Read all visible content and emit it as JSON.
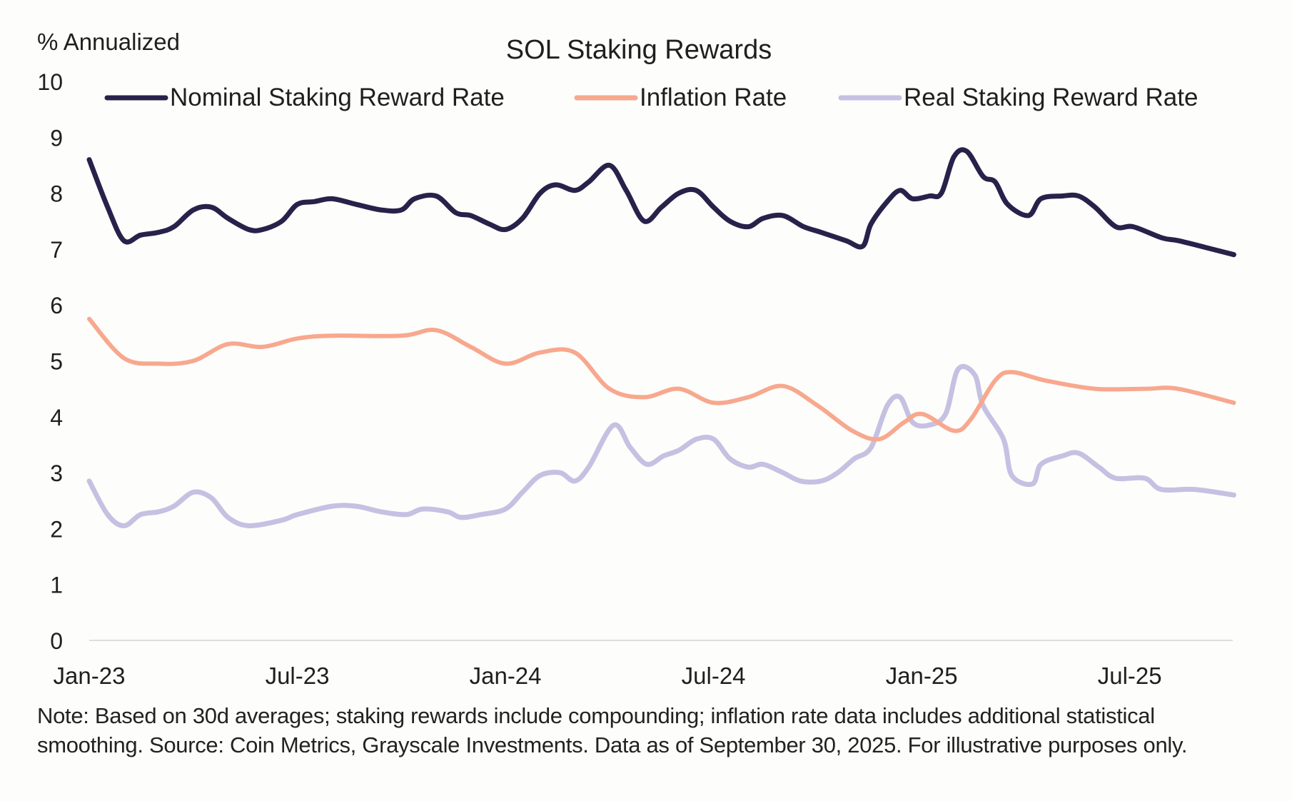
{
  "chart_data": {
    "type": "line",
    "title": "SOL Staking Rewards",
    "ylabel": "% Annualized",
    "xlabel": "",
    "ylim": [
      0,
      10
    ],
    "yticks": [
      "0",
      "1",
      "2",
      "3",
      "4",
      "5",
      "6",
      "7",
      "8",
      "9",
      "10"
    ],
    "x_unit": "months since Jan-23",
    "xlim": [
      0,
      32.97
    ],
    "xticks": [
      {
        "label": "Jan-23",
        "x": 0
      },
      {
        "label": "Jul-23",
        "x": 6
      },
      {
        "label": "Jan-24",
        "x": 12
      },
      {
        "label": "Jul-24",
        "x": 18
      },
      {
        "label": "Jan-25",
        "x": 24
      },
      {
        "label": "Jul-25",
        "x": 30
      }
    ],
    "grid": "baseline only",
    "legend": "top",
    "series": [
      {
        "name": "Nominal Staking Reward Rate",
        "color": "#27224a",
        "x": [
          0,
          0.53,
          1.0,
          1.48,
          2.0,
          2.44,
          3.0,
          3.52,
          4.0,
          4.6,
          5.0,
          5.55,
          6.0,
          6.5,
          7.0,
          7.7,
          8.42,
          9.0,
          9.38,
          10.0,
          10.57,
          11.0,
          11.53,
          12.0,
          12.49,
          13.0,
          13.45,
          14.0,
          14.4,
          15.0,
          15.48,
          16.0,
          16.5,
          17.0,
          17.5,
          18.0,
          18.47,
          19.0,
          19.43,
          20.0,
          20.6,
          21.1,
          21.82,
          22.3,
          22.54,
          23.01,
          23.38,
          23.74,
          24.23,
          24.57,
          24.93,
          25.3,
          25.77,
          26.12,
          26.48,
          27.08,
          27.44,
          28.06,
          28.52,
          29.0,
          29.6,
          30.1,
          30.93,
          31.41,
          32.37,
          33.0
        ],
        "values": [
          8.6,
          7.75,
          7.15,
          7.25,
          7.3,
          7.4,
          7.7,
          7.75,
          7.55,
          7.35,
          7.35,
          7.5,
          7.8,
          7.85,
          7.9,
          7.8,
          7.7,
          7.7,
          7.9,
          7.95,
          7.65,
          7.6,
          7.45,
          7.35,
          7.55,
          8.0,
          8.15,
          8.05,
          8.2,
          8.5,
          8.05,
          7.5,
          7.75,
          8.0,
          8.05,
          7.75,
          7.5,
          7.4,
          7.55,
          7.6,
          7.4,
          7.3,
          7.15,
          7.05,
          7.45,
          7.85,
          8.05,
          7.9,
          7.95,
          8.0,
          8.65,
          8.75,
          8.3,
          8.2,
          7.8,
          7.6,
          7.9,
          7.95,
          7.95,
          7.75,
          7.4,
          7.4,
          7.2,
          7.15,
          7.0,
          6.9
        ]
      },
      {
        "name": "Inflation Rate",
        "color": "#f7a88e",
        "x": [
          0,
          1.0,
          2.0,
          3.0,
          4.0,
          5.0,
          6.0,
          7.0,
          9.0,
          10.0,
          11.0,
          12.0,
          13.0,
          14.0,
          15.0,
          16.0,
          17.0,
          18.0,
          19.0,
          20.0,
          21.0,
          22.0,
          22.78,
          23.49,
          24.02,
          24.93,
          25.41,
          26.12,
          26.6,
          27.56,
          29.0,
          30.43,
          31.39,
          33.0
        ],
        "values": [
          5.75,
          5.05,
          4.95,
          5.0,
          5.3,
          5.25,
          5.4,
          5.45,
          5.45,
          5.55,
          5.25,
          4.95,
          5.15,
          5.15,
          4.5,
          4.35,
          4.5,
          4.25,
          4.35,
          4.55,
          4.2,
          3.75,
          3.6,
          3.9,
          4.05,
          3.75,
          3.95,
          4.65,
          4.8,
          4.65,
          4.5,
          4.5,
          4.5,
          4.25
        ]
      },
      {
        "name": "Real Staking Reward Rate",
        "color": "#c5c1e2",
        "x": [
          0,
          0.53,
          1.0,
          1.48,
          2.0,
          2.44,
          3.0,
          3.52,
          4.0,
          4.6,
          5.55,
          6.0,
          7.0,
          7.7,
          8.42,
          9.14,
          9.62,
          10.33,
          10.72,
          11.29,
          12.0,
          12.49,
          13.0,
          13.57,
          14.0,
          14.4,
          15.12,
          15.6,
          16.08,
          16.56,
          17.0,
          17.51,
          18.0,
          18.47,
          19.0,
          19.43,
          20.0,
          20.51,
          21.1,
          21.58,
          22.06,
          22.54,
          23.01,
          23.38,
          23.74,
          24.21,
          24.69,
          25.05,
          25.53,
          25.77,
          26.36,
          26.6,
          27.2,
          27.44,
          28.06,
          28.52,
          29.11,
          29.59,
          30.43,
          30.91,
          31.87,
          33.0
        ],
        "values": [
          2.85,
          2.25,
          2.05,
          2.25,
          2.3,
          2.4,
          2.65,
          2.55,
          2.2,
          2.05,
          2.15,
          2.25,
          2.4,
          2.4,
          2.3,
          2.25,
          2.35,
          2.3,
          2.2,
          2.25,
          2.35,
          2.65,
          2.95,
          3.0,
          2.85,
          3.1,
          3.85,
          3.45,
          3.15,
          3.3,
          3.4,
          3.6,
          3.6,
          3.25,
          3.1,
          3.15,
          3.0,
          2.85,
          2.85,
          3.0,
          3.25,
          3.45,
          4.2,
          4.35,
          3.9,
          3.85,
          4.05,
          4.85,
          4.75,
          4.2,
          3.6,
          2.95,
          2.8,
          3.15,
          3.3,
          3.35,
          3.1,
          2.9,
          2.9,
          2.7,
          2.7,
          2.6
        ]
      }
    ],
    "note": "Note: Based on 30d averages; staking rewards include compounding; inflation rate data includes additional statistical smoothing. Source: Coin Metrics, Grayscale Investments. Data as of September 30, 2025. For illustrative purposes only."
  }
}
